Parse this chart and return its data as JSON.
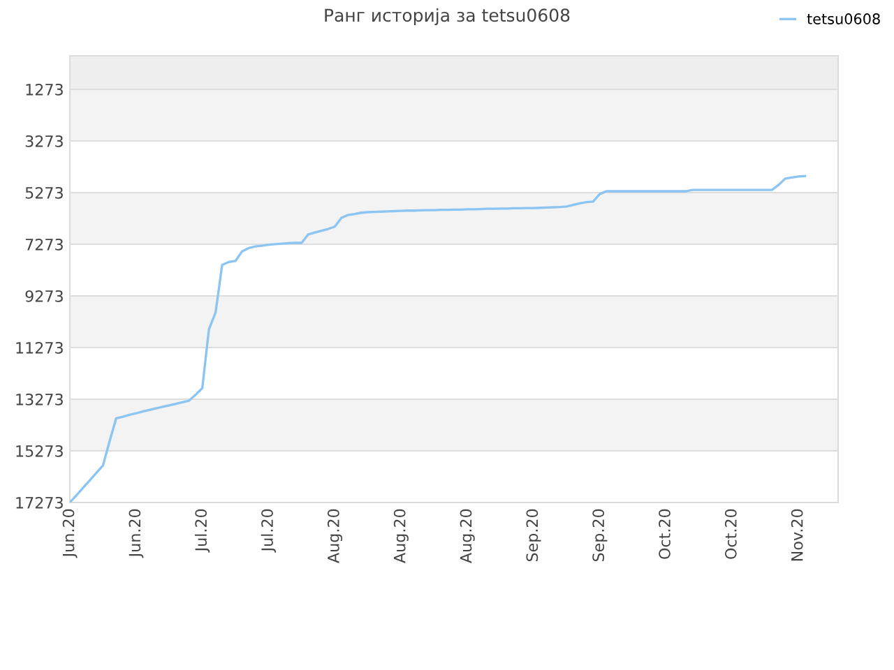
{
  "chart_data": {
    "type": "line",
    "title": "Ранг историја за tetsu0608",
    "categories": [
      "Jun.20",
      null,
      null,
      null,
      null,
      null,
      null,
      null,
      null,
      null,
      "Jun.20",
      null,
      null,
      null,
      null,
      null,
      null,
      null,
      null,
      null,
      "Jul.20",
      null,
      null,
      null,
      null,
      null,
      null,
      null,
      null,
      null,
      "Jul.20",
      null,
      null,
      null,
      null,
      null,
      null,
      null,
      null,
      null,
      "Aug.20",
      null,
      null,
      null,
      null,
      null,
      null,
      null,
      null,
      null,
      "Aug.20",
      null,
      null,
      null,
      null,
      null,
      null,
      null,
      null,
      null,
      "Aug.20",
      null,
      null,
      null,
      null,
      null,
      null,
      null,
      null,
      null,
      "Sep.20",
      null,
      null,
      null,
      null,
      null,
      null,
      null,
      null,
      null,
      "Sep.20",
      null,
      null,
      null,
      null,
      null,
      null,
      null,
      null,
      null,
      "Oct.20",
      null,
      null,
      null,
      null,
      null,
      null,
      null,
      null,
      null,
      "Oct.20",
      null,
      null,
      null,
      null,
      null,
      null,
      null,
      null,
      null,
      "Nov.20",
      null,
      null,
      null,
      null,
      null,
      null
    ],
    "series": [
      {
        "name": "tetsu0608",
        "color": "#8cc4f2",
        "values": [
          17270,
          16990,
          16700,
          16420,
          16130,
          15840,
          14900,
          14010,
          13950,
          13880,
          13820,
          13750,
          13690,
          13630,
          13570,
          13510,
          13450,
          13390,
          13330,
          13100,
          12840,
          10570,
          9920,
          8070,
          7960,
          7920,
          7550,
          7420,
          7360,
          7330,
          7290,
          7270,
          7250,
          7230,
          7220,
          7220,
          6890,
          6820,
          6750,
          6680,
          6590,
          6250,
          6140,
          6100,
          6050,
          6030,
          6020,
          6010,
          6000,
          5990,
          5980,
          5970,
          5970,
          5960,
          5950,
          5950,
          5940,
          5940,
          5930,
          5930,
          5920,
          5920,
          5910,
          5900,
          5900,
          5890,
          5890,
          5880,
          5880,
          5870,
          5870,
          5860,
          5850,
          5840,
          5830,
          5810,
          5750,
          5690,
          5640,
          5620,
          5330,
          5220,
          5220,
          5220,
          5220,
          5220,
          5220,
          5220,
          5220,
          5220,
          5220,
          5220,
          5220,
          5220,
          5170,
          5170,
          5170,
          5170,
          5170,
          5170,
          5170,
          5170,
          5170,
          5170,
          5170,
          5170,
          5170,
          4980,
          4730,
          4690,
          4650,
          4630,
          null,
          null,
          null,
          null,
          null
        ]
      }
    ],
    "ylim": [
      17273,
      -24
    ],
    "yticks": [
      1273,
      3273,
      5273,
      7273,
      9273,
      11273,
      13273,
      15273,
      17273
    ],
    "grid": "y",
    "legend": "top right",
    "marker": "none",
    "line_style": "solid"
  }
}
